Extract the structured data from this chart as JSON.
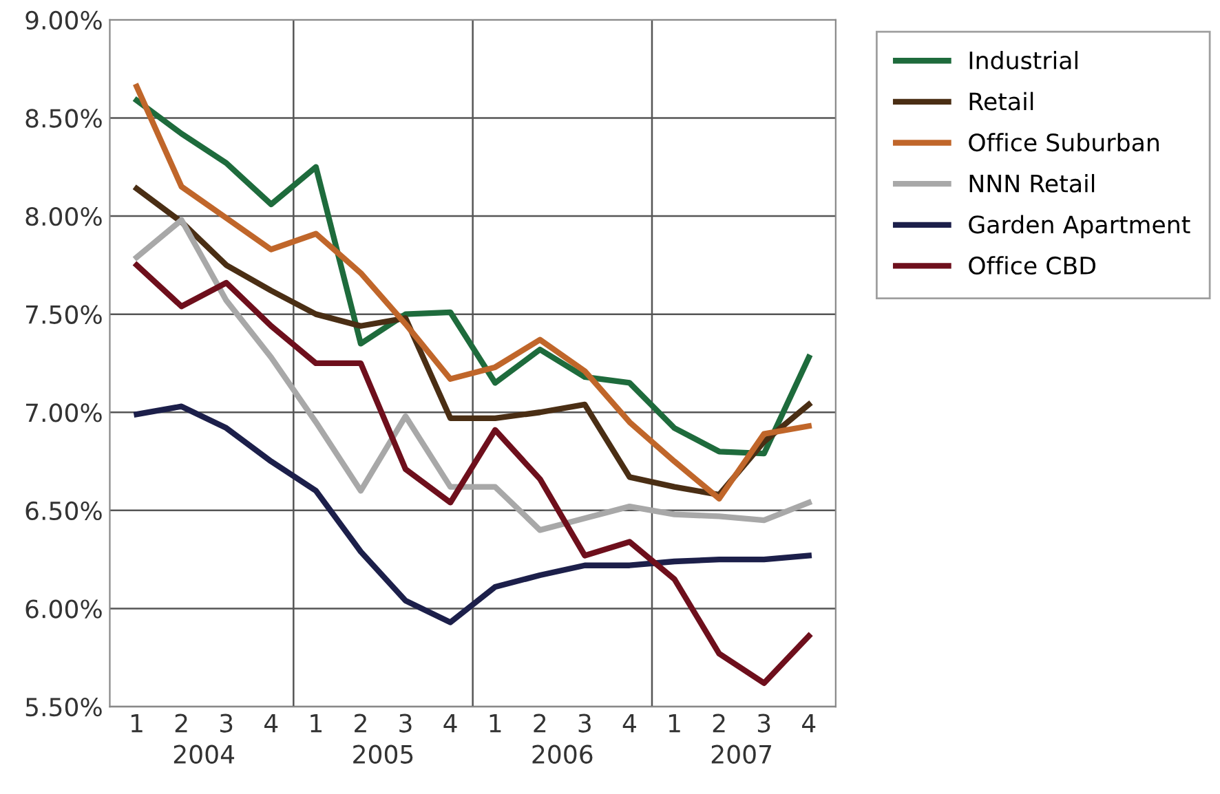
{
  "chart_data": {
    "type": "line",
    "categories": [
      "1",
      "2",
      "3",
      "4",
      "1",
      "2",
      "3",
      "4",
      "1",
      "2",
      "3",
      "4",
      "1",
      "2",
      "3",
      "4"
    ],
    "annotations": [
      "2004",
      "2005",
      "2006",
      "2007"
    ],
    "series": [
      {
        "name": "Industrial",
        "color": "#1e6b3c",
        "values": [
          8.59,
          8.42,
          8.27,
          8.06,
          8.25,
          7.35,
          7.5,
          7.51,
          7.15,
          7.32,
          7.18,
          7.15,
          6.92,
          6.8,
          6.79,
          7.28
        ]
      },
      {
        "name": "Retail",
        "color": "#4a2e14",
        "values": [
          8.14,
          7.97,
          7.75,
          7.62,
          7.5,
          7.44,
          7.48,
          6.97,
          6.97,
          7.0,
          7.04,
          6.67,
          6.62,
          6.58,
          6.85,
          7.04
        ]
      },
      {
        "name": "Office Suburban",
        "color": "#c0662a",
        "values": [
          8.66,
          8.15,
          7.99,
          7.83,
          7.91,
          7.71,
          7.45,
          7.17,
          7.23,
          7.37,
          7.21,
          6.95,
          6.75,
          6.56,
          6.89,
          6.93
        ]
      },
      {
        "name": "NNN Retail",
        "color": "#a8a8a8",
        "values": [
          7.79,
          7.98,
          7.57,
          7.28,
          6.95,
          6.6,
          6.98,
          6.62,
          6.62,
          6.4,
          6.46,
          6.52,
          6.48,
          6.47,
          6.45,
          6.54
        ]
      },
      {
        "name": "Garden Apartment",
        "color": "#1c1f4a",
        "values": [
          6.99,
          7.03,
          6.92,
          6.75,
          6.6,
          6.29,
          6.04,
          5.93,
          6.11,
          6.17,
          6.22,
          6.22,
          6.24,
          6.25,
          6.25,
          6.27
        ]
      },
      {
        "name": "Office CBD",
        "color": "#6e0f1c",
        "values": [
          7.75,
          7.54,
          7.66,
          7.44,
          7.25,
          7.25,
          6.71,
          6.54,
          6.91,
          6.66,
          6.27,
          6.34,
          6.15,
          5.77,
          5.62,
          5.86
        ]
      }
    ],
    "ylim": [
      5.5,
      9.0
    ],
    "yticks": [
      {
        "value": 5.5,
        "label": "5.50%"
      },
      {
        "value": 6.0,
        "label": "6.00%"
      },
      {
        "value": 6.5,
        "label": "6.50%"
      },
      {
        "value": 7.0,
        "label": "7.00%"
      },
      {
        "value": 7.5,
        "label": "7.50%"
      },
      {
        "value": 8.0,
        "label": "8.00%"
      },
      {
        "value": 8.5,
        "label": "8.50%"
      },
      {
        "value": 9.0,
        "label": "9.00%"
      }
    ],
    "grid": "y",
    "legend": "right",
    "marker": "none",
    "line_style": "solid"
  }
}
